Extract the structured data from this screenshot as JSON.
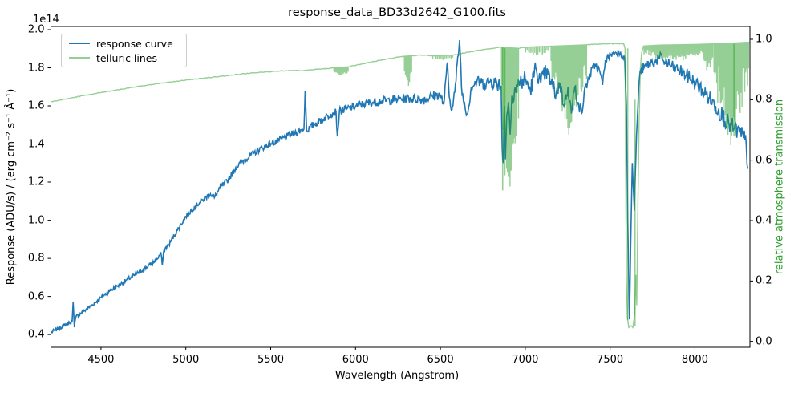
{
  "chart_data": {
    "type": "line",
    "title": "response_data_BD33d2642_G100.fits",
    "xlabel": "Wavelength (Angstrom)",
    "ylabel_left": "Response (ADU/s) / (erg cm⁻² s⁻¹ Å⁻¹)",
    "offset_text": "1e14",
    "ylabel_right": "relative atmosphere transmission",
    "x_lim": [
      4205,
      8324
    ],
    "y_left_lim": [
      0.333,
      2.017
    ],
    "y_right_lim": [
      -0.0195,
      1.0425
    ],
    "x_ticks": [
      4500,
      5000,
      5500,
      6000,
      6500,
      7000,
      7500,
      8000
    ],
    "y_left_ticks": [
      0.4,
      0.6,
      0.8,
      1.0,
      1.2,
      1.4,
      1.6,
      1.8,
      2.0
    ],
    "y_right_ticks": [
      0.0,
      0.2,
      0.4,
      0.6,
      0.8,
      1.0
    ],
    "grid": false,
    "legend_position": "upper left",
    "colors": {
      "response_curve": "#1f77b4",
      "telluric_lines": "#2ca02c",
      "telluric_alpha": 0.5,
      "right_label_green": "#2ca02c",
      "legend_border": "#cccccc",
      "spine": "#000000"
    },
    "series": [
      {
        "name": "response curve",
        "axis": "left",
        "color": "#1f77b4",
        "seed": 7,
        "noise": [
          [
            4205,
            0.01
          ],
          [
            4900,
            0.012
          ],
          [
            5400,
            0.016
          ],
          [
            5900,
            0.02
          ],
          [
            6400,
            0.026
          ],
          [
            6700,
            0.03
          ],
          [
            6950,
            0.055
          ],
          [
            7150,
            0.045
          ],
          [
            7380,
            0.028
          ],
          [
            7590,
            0.015
          ],
          [
            7690,
            0.03
          ],
          [
            7900,
            0.035
          ],
          [
            8100,
            0.045
          ],
          [
            8312,
            0.055
          ]
        ],
        "anchors": [
          [
            4205,
            0.41
          ],
          [
            4240,
            0.428
          ],
          [
            4280,
            0.447
          ],
          [
            4315,
            0.462
          ],
          [
            4330,
            0.47
          ],
          [
            4336,
            0.57
          ],
          [
            4343,
            0.438
          ],
          [
            4352,
            0.492
          ],
          [
            4400,
            0.524
          ],
          [
            4450,
            0.556
          ],
          [
            4500,
            0.594
          ],
          [
            4550,
            0.628
          ],
          [
            4600,
            0.656
          ],
          [
            4650,
            0.686
          ],
          [
            4700,
            0.712
          ],
          [
            4750,
            0.742
          ],
          [
            4800,
            0.772
          ],
          [
            4830,
            0.795
          ],
          [
            4853,
            0.828
          ],
          [
            4861,
            0.765
          ],
          [
            4872,
            0.846
          ],
          [
            4900,
            0.872
          ],
          [
            4950,
            0.948
          ],
          [
            5000,
            1.02
          ],
          [
            5050,
            1.068
          ],
          [
            5100,
            1.108
          ],
          [
            5145,
            1.138
          ],
          [
            5168,
            1.118
          ],
          [
            5200,
            1.168
          ],
          [
            5250,
            1.212
          ],
          [
            5300,
            1.282
          ],
          [
            5350,
            1.32
          ],
          [
            5400,
            1.352
          ],
          [
            5450,
            1.38
          ],
          [
            5500,
            1.402
          ],
          [
            5550,
            1.42
          ],
          [
            5600,
            1.442
          ],
          [
            5650,
            1.462
          ],
          [
            5696,
            1.478
          ],
          [
            5703,
            1.68
          ],
          [
            5712,
            1.472
          ],
          [
            5760,
            1.505
          ],
          [
            5810,
            1.532
          ],
          [
            5855,
            1.558
          ],
          [
            5885,
            1.57
          ],
          [
            5893,
            1.44
          ],
          [
            5905,
            1.572
          ],
          [
            5950,
            1.585
          ],
          [
            6000,
            1.598
          ],
          [
            6050,
            1.61
          ],
          [
            6100,
            1.618
          ],
          [
            6150,
            1.625
          ],
          [
            6200,
            1.63
          ],
          [
            6250,
            1.636
          ],
          [
            6300,
            1.64
          ],
          [
            6350,
            1.638
          ],
          [
            6400,
            1.632
          ],
          [
            6450,
            1.652
          ],
          [
            6495,
            1.66
          ],
          [
            6520,
            1.608
          ],
          [
            6542,
            1.828
          ],
          [
            6552,
            1.648
          ],
          [
            6563,
            1.582
          ],
          [
            6585,
            1.672
          ],
          [
            6613,
            1.945
          ],
          [
            6628,
            1.658
          ],
          [
            6660,
            1.555
          ],
          [
            6682,
            1.7
          ],
          [
            6715,
            1.728
          ],
          [
            6760,
            1.718
          ],
          [
            6800,
            1.73
          ],
          [
            6842,
            1.718
          ],
          [
            6858,
            1.705
          ],
          [
            6864,
            1.38
          ],
          [
            6871,
            1.3
          ],
          [
            6877,
            1.6
          ],
          [
            6883,
            1.32
          ],
          [
            6891,
            1.55
          ],
          [
            6901,
            1.62
          ],
          [
            6911,
            1.45
          ],
          [
            6921,
            1.65
          ],
          [
            6941,
            1.7
          ],
          [
            6970,
            1.72
          ],
          [
            7000,
            1.74
          ],
          [
            7030,
            1.68
          ],
          [
            7062,
            1.8
          ],
          [
            7092,
            1.72
          ],
          [
            7122,
            1.78
          ],
          [
            7150,
            1.73
          ],
          [
            7182,
            1.66
          ],
          [
            7205,
            1.72
          ],
          [
            7228,
            1.6
          ],
          [
            7252,
            1.7
          ],
          [
            7272,
            1.56
          ],
          [
            7292,
            1.7
          ],
          [
            7312,
            1.62
          ],
          [
            7332,
            1.56
          ],
          [
            7355,
            1.7
          ],
          [
            7382,
            1.76
          ],
          [
            7412,
            1.82
          ],
          [
            7440,
            1.78
          ],
          [
            7456,
            1.71
          ],
          [
            7472,
            1.84
          ],
          [
            7502,
            1.868
          ],
          [
            7532,
            1.882
          ],
          [
            7562,
            1.88
          ],
          [
            7586,
            1.85
          ],
          [
            7596,
            1.6
          ],
          [
            7604,
            1.0
          ],
          [
            7610,
            0.7
          ],
          [
            7614,
            0.48
          ],
          [
            7621,
            0.85
          ],
          [
            7631,
            1.3
          ],
          [
            7643,
            1.05
          ],
          [
            7656,
            1.45
          ],
          [
            7669,
            1.7
          ],
          [
            7681,
            1.79
          ],
          [
            7700,
            1.8
          ],
          [
            7732,
            1.822
          ],
          [
            7762,
            1.832
          ],
          [
            7792,
            1.85
          ],
          [
            7812,
            1.84
          ],
          [
            7842,
            1.82
          ],
          [
            7872,
            1.8
          ],
          [
            7902,
            1.79
          ],
          [
            7932,
            1.772
          ],
          [
            7962,
            1.752
          ],
          [
            8002,
            1.72
          ],
          [
            8042,
            1.682
          ],
          [
            8082,
            1.642
          ],
          [
            8122,
            1.6
          ],
          [
            8162,
            1.552
          ],
          [
            8202,
            1.5
          ],
          [
            8232,
            1.48
          ],
          [
            8262,
            1.46
          ],
          [
            8287,
            1.432
          ],
          [
            8302,
            1.4
          ],
          [
            8312,
            1.27
          ]
        ]
      },
      {
        "name": "telluric lines",
        "axis": "right",
        "color": "#2ca02c",
        "opacity": 0.5,
        "seed": 3,
        "noise": [
          [
            4205,
            0.0012
          ],
          [
            8324,
            0.0012
          ]
        ],
        "anchors": [
          [
            4205,
            0.793
          ],
          [
            4300,
            0.803
          ],
          [
            4400,
            0.814
          ],
          [
            4500,
            0.824
          ],
          [
            4600,
            0.833
          ],
          [
            4700,
            0.842
          ],
          [
            4800,
            0.851
          ],
          [
            4900,
            0.858
          ],
          [
            5000,
            0.865
          ],
          [
            5100,
            0.871
          ],
          [
            5200,
            0.877
          ],
          [
            5300,
            0.884
          ],
          [
            5400,
            0.889
          ],
          [
            5500,
            0.893
          ],
          [
            5560,
            0.896
          ],
          [
            5620,
            0.897
          ],
          [
            5680,
            0.896
          ],
          [
            5740,
            0.899
          ],
          [
            5800,
            0.902
          ],
          [
            5860,
            0.905
          ],
          [
            5960,
            0.909
          ],
          [
            6050,
            0.92
          ],
          [
            6150,
            0.931
          ],
          [
            6250,
            0.941
          ],
          [
            6285,
            0.944
          ],
          [
            6340,
            0.946
          ],
          [
            6400,
            0.948
          ],
          [
            6450,
            0.946
          ],
          [
            6580,
            0.948
          ],
          [
            6650,
            0.956
          ],
          [
            6750,
            0.966
          ],
          [
            6820,
            0.971
          ],
          [
            6858,
            0.974
          ],
          [
            6965,
            0.97
          ],
          [
            7000,
            0.974
          ],
          [
            7145,
            0.977
          ],
          [
            7365,
            0.982
          ],
          [
            7460,
            0.985
          ],
          [
            7580,
            0.986
          ],
          [
            7588,
            0.97
          ],
          [
            7592,
            0.6
          ],
          [
            7596,
            0.2
          ],
          [
            7602,
            0.08
          ],
          [
            7610,
            0.046
          ],
          [
            7622,
            0.052
          ],
          [
            7634,
            0.046
          ],
          [
            7645,
            0.09
          ],
          [
            7652,
            0.22
          ],
          [
            7657,
            0.12
          ],
          [
            7664,
            0.45
          ],
          [
            7671,
            0.72
          ],
          [
            7678,
            0.9
          ],
          [
            7686,
            0.956
          ],
          [
            7698,
            0.978
          ],
          [
            7800,
            0.981
          ],
          [
            7900,
            0.982
          ],
          [
            8000,
            0.983
          ],
          [
            8110,
            0.985
          ],
          [
            8200,
            0.987
          ],
          [
            8300,
            0.99
          ],
          [
            8324,
            0.99
          ]
        ],
        "teeth_bands": [
          {
            "from": 5872,
            "to": 5958,
            "spacing": 7,
            "edge_bottom": 0.893,
            "center_bottom": 0.883,
            "jitter": 0.004
          },
          {
            "from": 6288,
            "to": 6334,
            "spacing": 6,
            "edge_bottom": 0.9,
            "center_bottom": 0.853,
            "jitter": 0.01
          },
          {
            "from": 6455,
            "to": 6580,
            "spacing": 9,
            "edge_bottom": 0.941,
            "center_bottom": 0.931,
            "jitter": 0.005
          },
          {
            "from": 6860,
            "to": 6962,
            "spacing": 5,
            "edge_bottom": 0.82,
            "center_bottom": 0.5,
            "jitter": 0.07
          },
          {
            "from": 7002,
            "to": 7140,
            "spacing": 9,
            "edge_bottom": 0.962,
            "center_bottom": 0.95,
            "jitter": 0.006
          },
          {
            "from": 7152,
            "to": 7362,
            "spacing": 5.5,
            "edge_bottom": 0.9,
            "center_bottom": 0.725,
            "jitter": 0.05
          },
          {
            "from": 7700,
            "to": 8045,
            "spacing": 7,
            "edge_bottom": 0.956,
            "center_bottom": 0.932,
            "jitter": 0.012
          },
          {
            "from": 8048,
            "to": 8108,
            "spacing": 7,
            "edge_bottom": 0.936,
            "center_bottom": 0.902,
            "jitter": 0.015
          },
          {
            "from": 8112,
            "to": 8318,
            "spacing": 5.5,
            "edge_bottom": 0.9,
            "center_bottom": 0.705,
            "jitter": 0.07
          }
        ],
        "deep_lines": [
          [
            6867,
            0.973,
            0.5
          ],
          [
            6880,
            0.97,
            0.55
          ],
          [
            7604,
            0.97,
            0.07
          ],
          [
            7647,
            0.05,
            0.8
          ],
          [
            8230,
            0.985,
            0.68
          ]
        ]
      }
    ],
    "legend": {
      "entries": [
        {
          "label": "response curve",
          "swatch_color": "#1f77b4"
        },
        {
          "label": "telluric lines",
          "swatch_color": "#96cf96"
        }
      ]
    }
  }
}
